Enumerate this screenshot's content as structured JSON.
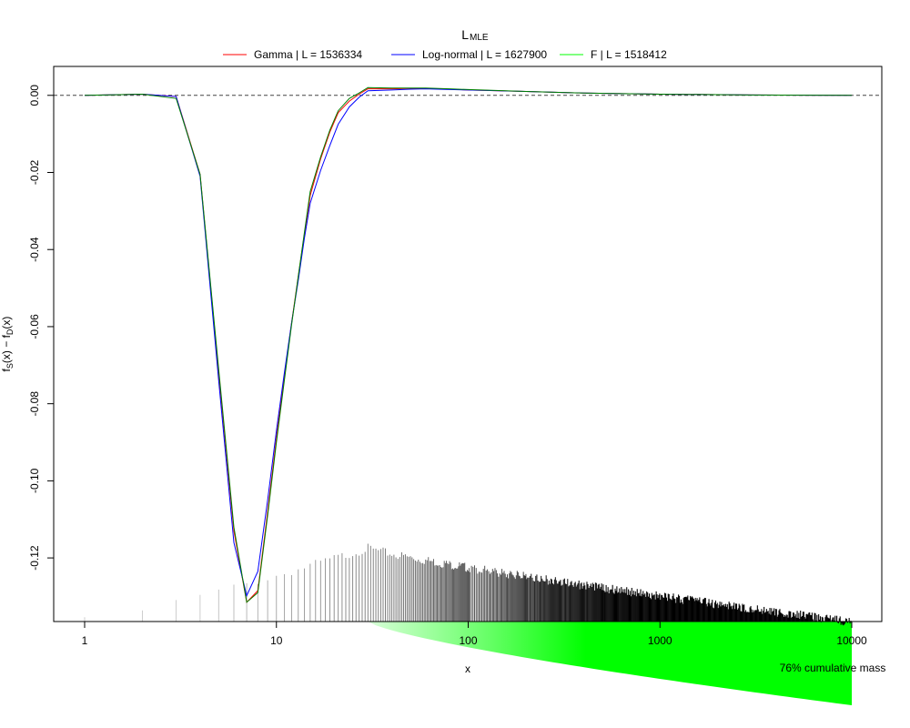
{
  "chart_data": {
    "type": "line",
    "title": {
      "base": "L",
      "sub": "MLE"
    },
    "xlabel": "x",
    "ylabel": {
      "f": "f",
      "s": "S",
      "mid": "(x) − f",
      "d": "D",
      "end": "(x)"
    },
    "x_scale": "log",
    "xlim": [
      1,
      10000
    ],
    "ylim": [
      -0.1365,
      0.0075
    ],
    "x_ticks": [
      1,
      10,
      100,
      1000,
      10000
    ],
    "x_tick_labels": [
      "1",
      "10",
      "100",
      "1000",
      "10000"
    ],
    "y_ticks": [
      0,
      -0.02,
      -0.04,
      -0.06,
      -0.08,
      -0.1,
      -0.12
    ],
    "y_tick_labels": [
      "0.00",
      "-0.02",
      "-0.04",
      "-0.06",
      "-0.08",
      "-0.10",
      "-0.12"
    ],
    "reference_line_y": 0,
    "legend_position": "top-center",
    "series": [
      {
        "name": "Gamma | L = 1536334",
        "color": "#ff0000",
        "points": [
          [
            1,
            0
          ],
          [
            2,
            0.0003
          ],
          [
            3,
            -0.0003
          ],
          [
            4,
            -0.0205
          ],
          [
            5,
            -0.072
          ],
          [
            6,
            -0.113
          ],
          [
            7,
            -0.1315
          ],
          [
            8,
            -0.1285
          ],
          [
            9,
            -0.108
          ],
          [
            10,
            -0.089
          ],
          [
            11,
            -0.073
          ],
          [
            12,
            -0.059
          ],
          [
            13,
            -0.047
          ],
          [
            14,
            -0.036
          ],
          [
            15,
            -0.026
          ],
          [
            17,
            -0.0165
          ],
          [
            19,
            -0.0095
          ],
          [
            21,
            -0.0045
          ],
          [
            24,
            -0.0015
          ],
          [
            27,
            0.0003
          ],
          [
            30,
            0.0017
          ],
          [
            40,
            0.0017
          ],
          [
            50,
            0.0018
          ],
          [
            60,
            0.0018
          ],
          [
            80,
            0.0016
          ],
          [
            100,
            0.0014
          ],
          [
            200,
            0.001
          ],
          [
            400,
            0.0006
          ],
          [
            1000,
            0.0003
          ],
          [
            3000,
            0.0001
          ],
          [
            10000,
            0
          ]
        ]
      },
      {
        "name": "Log-normal | L = 1627900",
        "color": "#0000ff",
        "points": [
          [
            1,
            0
          ],
          [
            2,
            0.0003
          ],
          [
            3,
            -0.0003
          ],
          [
            4,
            -0.021
          ],
          [
            5,
            -0.074
          ],
          [
            6,
            -0.116
          ],
          [
            7,
            -0.1298
          ],
          [
            8,
            -0.1235
          ],
          [
            9,
            -0.105
          ],
          [
            10,
            -0.087
          ],
          [
            11,
            -0.072
          ],
          [
            12,
            -0.059
          ],
          [
            13,
            -0.048
          ],
          [
            14,
            -0.037
          ],
          [
            15,
            -0.028
          ],
          [
            17,
            -0.0195
          ],
          [
            19,
            -0.013
          ],
          [
            21,
            -0.0075
          ],
          [
            24,
            -0.003
          ],
          [
            27,
            -0.0005
          ],
          [
            30,
            0.0012
          ],
          [
            40,
            0.0014
          ],
          [
            50,
            0.0016
          ],
          [
            60,
            0.0017
          ],
          [
            80,
            0.0015
          ],
          [
            100,
            0.0014
          ],
          [
            200,
            0.001
          ],
          [
            400,
            0.0006
          ],
          [
            1000,
            0.0003
          ],
          [
            3000,
            0.0001
          ],
          [
            10000,
            0
          ]
        ]
      },
      {
        "name": "F | L = 1518412",
        "color": "#00ff00",
        "points": [
          [
            1,
            0
          ],
          [
            2,
            0.0003
          ],
          [
            3,
            -0.0008
          ],
          [
            4,
            -0.0205
          ],
          [
            5,
            -0.071
          ],
          [
            6,
            -0.112
          ],
          [
            7,
            -0.1315
          ],
          [
            8,
            -0.129
          ],
          [
            9,
            -0.109
          ],
          [
            10,
            -0.09
          ],
          [
            11,
            -0.074
          ],
          [
            12,
            -0.0595
          ],
          [
            13,
            -0.047
          ],
          [
            14,
            -0.0355
          ],
          [
            15,
            -0.025
          ],
          [
            17,
            -0.016
          ],
          [
            19,
            -0.009
          ],
          [
            21,
            -0.004
          ],
          [
            24,
            -0.0008
          ],
          [
            27,
            0.0006
          ],
          [
            30,
            0.002
          ],
          [
            40,
            0.0019
          ],
          [
            50,
            0.0019
          ],
          [
            60,
            0.0019
          ],
          [
            80,
            0.0017
          ],
          [
            100,
            0.0015
          ],
          [
            200,
            0.001
          ],
          [
            400,
            0.0006
          ],
          [
            1000,
            0.0003
          ],
          [
            3000,
            0.0001
          ],
          [
            10000,
            0
          ]
        ]
      }
    ],
    "green_series_line_color": "#008000",
    "histogram": {
      "description_values": "frequency spikes drawn at integer x from 1 to 10000, heights in y-axis units",
      "color_light": "#bbbbbb",
      "color_dark": "#000000",
      "top_at_x1": -0.1365,
      "peak_top": -0.1175,
      "peak_x": 30,
      "tail_top_at_10000": -0.1366
    },
    "cumulative_mass": {
      "label": "76% cumulative mass",
      "color": "#00ff00",
      "start_x": 30,
      "end_x": 10000,
      "final_fraction": 0.76
    }
  }
}
